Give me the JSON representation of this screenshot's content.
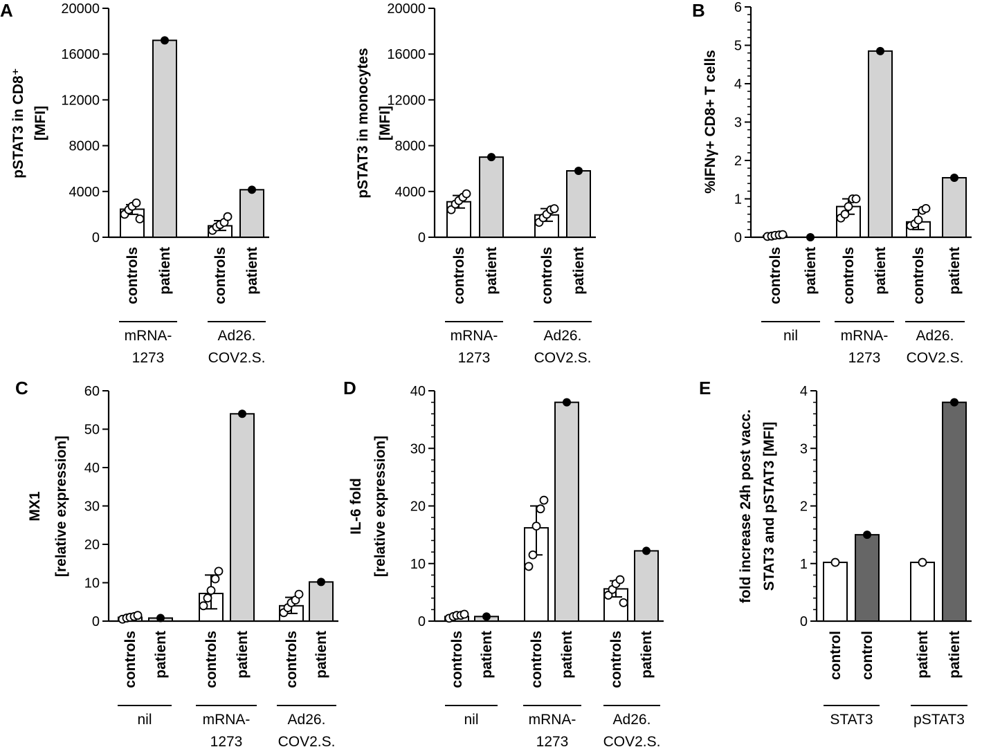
{
  "figure": {
    "panel_letters": [
      "A",
      "B",
      "C",
      "D",
      "E"
    ]
  },
  "chart_data": [
    {
      "id": "A1",
      "type": "bar",
      "panel": "A",
      "ylabel_lines": [
        "pSTAT3 in CD8⁺",
        "[MFI]"
      ],
      "ylim": [
        0,
        20000
      ],
      "yticks": [
        0,
        4000,
        8000,
        12000,
        16000,
        20000
      ],
      "groups": [
        "mRNA-\n1273",
        "Ad26.\nCOV2.S."
      ],
      "bars": [
        {
          "label": "controls",
          "group": 0,
          "value": 2450,
          "fill": "#ffffff",
          "points": [
            2000,
            2400,
            2700,
            3000,
            1600
          ],
          "error": [
            2000,
            2850
          ]
        },
        {
          "label": "patient",
          "group": 0,
          "value": 17200,
          "fill": "#d3d3d3",
          "points": [
            17200
          ]
        },
        {
          "label": "controls",
          "group": 1,
          "value": 1000,
          "fill": "#ffffff",
          "points": [
            600,
            900,
            1100,
            1300,
            1800
          ],
          "error": [
            600,
            1450
          ]
        },
        {
          "label": "patient",
          "group": 1,
          "value": 4150,
          "fill": "#d3d3d3",
          "points": [
            4150
          ]
        }
      ]
    },
    {
      "id": "A2",
      "type": "bar",
      "panel": "",
      "ylabel_lines": [
        "pSTAT3 in monocytes",
        "[MFI]"
      ],
      "ylim": [
        0,
        20000
      ],
      "yticks": [
        0,
        4000,
        8000,
        12000,
        16000,
        20000
      ],
      "groups": [
        "mRNA-\n1273",
        "Ad26.\nCOV2.S."
      ],
      "bars": [
        {
          "label": "controls",
          "group": 0,
          "value": 3100,
          "fill": "#ffffff",
          "points": [
            2400,
            2900,
            3200,
            3500,
            3800
          ],
          "error": [
            2550,
            3650
          ]
        },
        {
          "label": "patient",
          "group": 0,
          "value": 7000,
          "fill": "#d3d3d3",
          "points": [
            7000
          ]
        },
        {
          "label": "controls",
          "group": 1,
          "value": 1950,
          "fill": "#ffffff",
          "points": [
            1300,
            1700,
            2000,
            2400,
            2500
          ],
          "error": [
            1400,
            2500
          ]
        },
        {
          "label": "patient",
          "group": 1,
          "value": 5800,
          "fill": "#d3d3d3",
          "points": [
            5800
          ]
        }
      ]
    },
    {
      "id": "B",
      "type": "bar",
      "panel": "B",
      "ylabel_lines": [
        "%IFNγ+ CD8+ T cells"
      ],
      "ylim": [
        0,
        6
      ],
      "yticks": [
        0,
        1,
        2,
        3,
        4,
        5,
        6
      ],
      "minor_ticks": true,
      "groups": [
        "nil",
        "mRNA-\n1273",
        "Ad26.\nCOV2.S."
      ],
      "bars": [
        {
          "label": "controls",
          "group": 0,
          "value": 0.04,
          "fill": "#ffffff",
          "points": [
            0.02,
            0.03,
            0.05,
            0.06,
            0.07
          ],
          "error": [
            0.0,
            0.08
          ]
        },
        {
          "label": "patient",
          "group": 0,
          "value": 0.0,
          "fill": "#d3d3d3",
          "points": [
            0.0
          ]
        },
        {
          "label": "controls",
          "group": 1,
          "value": 0.8,
          "fill": "#ffffff",
          "points": [
            0.5,
            0.6,
            0.8,
            1.0,
            1.0
          ],
          "error": [
            0.6,
            1.0
          ]
        },
        {
          "label": "patient",
          "group": 1,
          "value": 4.85,
          "fill": "#d3d3d3",
          "points": [
            4.85
          ]
        },
        {
          "label": "controls",
          "group": 2,
          "value": 0.4,
          "fill": "#ffffff",
          "points": [
            0.3,
            0.35,
            0.45,
            0.7,
            0.75
          ],
          "error": [
            0.2,
            0.72
          ]
        },
        {
          "label": "patient",
          "group": 2,
          "value": 1.55,
          "fill": "#d3d3d3",
          "points": [
            1.55
          ]
        }
      ]
    },
    {
      "id": "C",
      "type": "bar",
      "panel": "C",
      "ylabel_lines": [
        "MX1",
        "[relative expression]"
      ],
      "ylim": [
        0,
        60
      ],
      "yticks": [
        0,
        10,
        20,
        30,
        40,
        50,
        60
      ],
      "groups": [
        "nil",
        "mRNA-\n1273",
        "Ad26.\nCOV2.S."
      ],
      "bars": [
        {
          "label": "controls",
          "group": 0,
          "value": 1.0,
          "fill": "#ffffff",
          "points": [
            0.5,
            0.8,
            1.0,
            1.2,
            1.5
          ],
          "error": [
            0.5,
            1.5
          ]
        },
        {
          "label": "patient",
          "group": 0,
          "value": 0.8,
          "fill": "#d3d3d3",
          "points": [
            0.8
          ]
        },
        {
          "label": "controls",
          "group": 1,
          "value": 7.2,
          "fill": "#ffffff",
          "points": [
            4,
            6,
            8,
            11,
            13
          ],
          "error": [
            3.2,
            12
          ]
        },
        {
          "label": "patient",
          "group": 1,
          "value": 54,
          "fill": "#d3d3d3",
          "points": [
            54
          ]
        },
        {
          "label": "controls",
          "group": 2,
          "value": 4.0,
          "fill": "#ffffff",
          "points": [
            2.2,
            3.5,
            4.8,
            5.5,
            7
          ],
          "error": [
            2,
            6.2
          ]
        },
        {
          "label": "patient",
          "group": 2,
          "value": 10.2,
          "fill": "#d3d3d3",
          "points": [
            10.2
          ]
        }
      ]
    },
    {
      "id": "D",
      "type": "bar",
      "panel": "D",
      "ylabel_lines": [
        "IL-6 fold",
        "[relative expression]"
      ],
      "ylim": [
        0,
        40
      ],
      "yticks": [
        0,
        10,
        20,
        30,
        40
      ],
      "minor_ticks": true,
      "groups": [
        "nil",
        "mRNA-\n1273",
        "Ad26.\nCOV2.S."
      ],
      "bars": [
        {
          "label": "controls",
          "group": 0,
          "value": 0.8,
          "fill": "#ffffff",
          "points": [
            0.5,
            0.8,
            1.0,
            1.0,
            1.2
          ],
          "error": [
            0.5,
            1.1
          ]
        },
        {
          "label": "patient",
          "group": 0,
          "value": 0.8,
          "fill": "#d3d3d3",
          "points": [
            0.8
          ]
        },
        {
          "label": "controls",
          "group": 1,
          "value": 16.2,
          "fill": "#ffffff",
          "points": [
            9.5,
            11.5,
            16.5,
            19.5,
            21
          ],
          "error": [
            11.5,
            20
          ]
        },
        {
          "label": "patient",
          "group": 1,
          "value": 38,
          "fill": "#d3d3d3",
          "points": [
            38
          ]
        },
        {
          "label": "controls",
          "group": 2,
          "value": 5.6,
          "fill": "#ffffff",
          "points": [
            4.5,
            5.5,
            6.5,
            7.2,
            3.2
          ],
          "error": [
            4.2,
            7.0
          ]
        },
        {
          "label": "patient",
          "group": 2,
          "value": 12.2,
          "fill": "#d3d3d3",
          "points": [
            12.2
          ]
        }
      ]
    },
    {
      "id": "E",
      "type": "bar",
      "panel": "E",
      "ylabel_lines": [
        "fold increase  24h post vacc.",
        "STAT3 and pSTAT3 [MFI]"
      ],
      "ylim": [
        0,
        4
      ],
      "yticks": [
        0,
        1,
        2,
        3,
        4
      ],
      "minor_ticks": true,
      "groups": [
        "STAT3",
        "pSTAT3"
      ],
      "bars": [
        {
          "label": "control",
          "group": 0,
          "value": 1.02,
          "fill": "#ffffff",
          "points": [
            1.02
          ],
          "open_point": true
        },
        {
          "label": "control",
          "group": 0,
          "value": 1.5,
          "fill": "#666666",
          "points": [
            1.5
          ]
        },
        {
          "label": "patient",
          "group": 1,
          "value": 1.02,
          "fill": "#ffffff",
          "points": [
            1.02
          ],
          "open_point": true
        },
        {
          "label": "patient",
          "group": 1,
          "value": 3.8,
          "fill": "#666666",
          "points": [
            3.8
          ]
        }
      ]
    }
  ]
}
